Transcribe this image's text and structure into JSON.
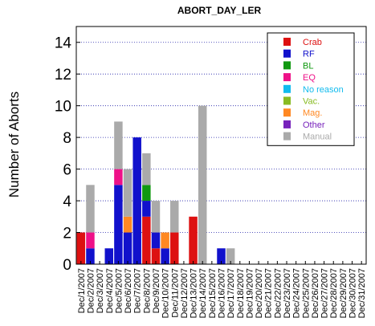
{
  "chart_data": {
    "type": "bar",
    "stacked": true,
    "title": "ABORT_DAY_LER",
    "ylabel": "Number of Aborts",
    "xlabel": "",
    "ylim": [
      0,
      15
    ],
    "yticks": [
      0,
      2,
      4,
      6,
      8,
      10,
      12,
      14
    ],
    "grid": true,
    "legend_position": "top-right",
    "categories": [
      "Dec/1/2007",
      "Dec/2/2007",
      "Dec/3/2007",
      "Dec/4/2007",
      "Dec/5/2007",
      "Dec/6/2007",
      "Dec/7/2007",
      "Dec/8/2007",
      "Dec/9/2007",
      "Dec/10/2007",
      "Dec/11/2007",
      "Dec/12/2007",
      "Dec/13/2007",
      "Dec/14/2007",
      "Dec/15/2007",
      "Dec/16/2007",
      "Dec/17/2007",
      "Dec/18/2007",
      "Dec/19/2007",
      "Dec/20/2007",
      "Dec/21/2007",
      "Dec/22/2007",
      "Dec/23/2007",
      "Dec/24/2007",
      "Dec/25/2007",
      "Dec/26/2007",
      "Dec/27/2007",
      "Dec/28/2007",
      "Dec/29/2007",
      "Dec/30/2007",
      "Dec/31/2007"
    ],
    "series": [
      {
        "name": "Crab",
        "color": "#dd1111",
        "values": [
          2,
          0,
          0,
          0,
          0,
          0,
          0,
          3,
          1,
          0,
          2,
          0,
          3,
          0,
          0,
          0,
          0,
          0,
          0,
          0,
          0,
          0,
          0,
          0,
          0,
          0,
          0,
          0,
          0,
          0,
          0
        ]
      },
      {
        "name": "RF",
        "color": "#1111cc",
        "values": [
          0,
          1,
          0,
          1,
          5,
          2,
          8,
          1,
          1,
          1,
          0,
          0,
          0,
          0,
          0,
          1,
          0,
          0,
          0,
          0,
          0,
          0,
          0,
          0,
          0,
          0,
          0,
          0,
          0,
          0,
          0
        ]
      },
      {
        "name": "BL",
        "color": "#119911",
        "values": [
          0,
          0,
          0,
          0,
          0,
          0,
          0,
          1,
          0,
          0,
          0,
          0,
          0,
          0,
          0,
          0,
          0,
          0,
          0,
          0,
          0,
          0,
          0,
          0,
          0,
          0,
          0,
          0,
          0,
          0,
          0
        ]
      },
      {
        "name": "EQ",
        "color": "#ee1188",
        "values": [
          0,
          1,
          0,
          0,
          1,
          0,
          0,
          0,
          0,
          0,
          0,
          0,
          0,
          0,
          0,
          0,
          0,
          0,
          0,
          0,
          0,
          0,
          0,
          0,
          0,
          0,
          0,
          0,
          0,
          0,
          0
        ]
      },
      {
        "name": "No reason",
        "color": "#11bbee",
        "values": [
          0,
          0,
          0,
          0,
          0,
          0,
          0,
          0,
          0,
          0,
          0,
          0,
          0,
          0,
          0,
          0,
          0,
          0,
          0,
          0,
          0,
          0,
          0,
          0,
          0,
          0,
          0,
          0,
          0,
          0,
          0
        ]
      },
      {
        "name": "Vac.",
        "color": "#88bb22",
        "values": [
          0,
          0,
          0,
          0,
          0,
          0,
          0,
          0,
          0,
          0,
          0,
          0,
          0,
          0,
          0,
          0,
          0,
          0,
          0,
          0,
          0,
          0,
          0,
          0,
          0,
          0,
          0,
          0,
          0,
          0,
          0
        ]
      },
      {
        "name": "Mag.",
        "color": "#ff8822",
        "values": [
          0,
          0,
          0,
          0,
          0,
          1,
          0,
          0,
          0,
          1,
          0,
          0,
          0,
          0,
          0,
          0,
          0,
          0,
          0,
          0,
          0,
          0,
          0,
          0,
          0,
          0,
          0,
          0,
          0,
          0,
          0
        ]
      },
      {
        "name": "Other",
        "color": "#7722bb",
        "values": [
          0,
          0,
          0,
          0,
          0,
          0,
          0,
          0,
          0,
          0,
          0,
          0,
          0,
          0,
          0,
          0,
          0,
          0,
          0,
          0,
          0,
          0,
          0,
          0,
          0,
          0,
          0,
          0,
          0,
          0,
          0
        ]
      },
      {
        "name": "Manual",
        "color": "#aaaaaa",
        "values": [
          0,
          3,
          0,
          0,
          3,
          3,
          0,
          2,
          2,
          0,
          2,
          0,
          0,
          10,
          0,
          0,
          1,
          0,
          0,
          0,
          0,
          0,
          0,
          0,
          0,
          0,
          0,
          0,
          0,
          0,
          0
        ]
      }
    ]
  }
}
